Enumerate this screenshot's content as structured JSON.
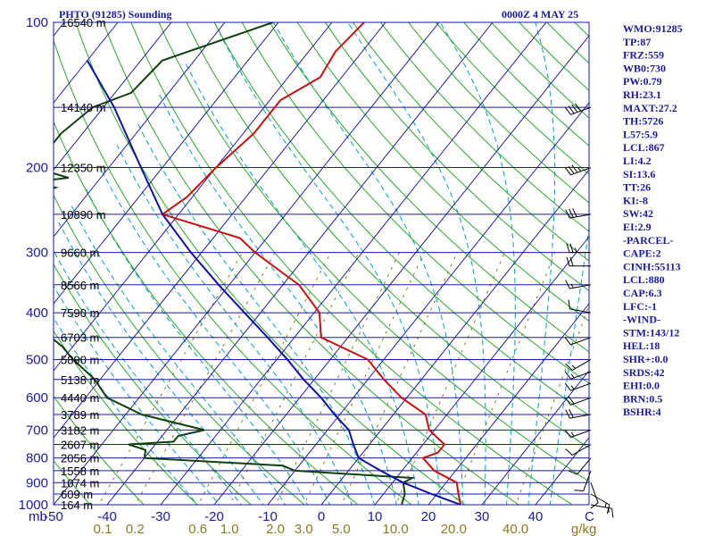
{
  "header": {
    "station": "PHTO (91285) Sounding",
    "time": "0000Z  4 MAY 25"
  },
  "chart_data": {
    "type": "skew-t",
    "pressure_axis": {
      "label": "mb",
      "levels": [
        100,
        200,
        300,
        400,
        500,
        600,
        700,
        800,
        900,
        1000
      ],
      "labels": [
        "100",
        "200",
        "300",
        "400",
        "500",
        "600",
        "700",
        "800",
        "900",
        "1000"
      ]
    },
    "temperature_axis": {
      "unit": "C",
      "ticks": [
        -50,
        -40,
        -30,
        -20,
        -10,
        0,
        10,
        20,
        30,
        40
      ],
      "labels": [
        "-50",
        "-40",
        "-30",
        "-20",
        "-10",
        "0",
        "10",
        "20",
        "30",
        "40"
      ]
    },
    "mixing_ratio_axis": {
      "unit": "g/kg",
      "values": [
        0.1,
        0.2,
        0.6,
        1.0,
        2.0,
        3.0,
        5.0,
        10.0,
        20.0,
        40.0
      ],
      "labels": [
        "0.1",
        "0.2",
        "0.6",
        "1.0",
        "2.0",
        "3.0",
        "5.0",
        "10.0",
        "20.0",
        "40.0"
      ]
    },
    "height_labels": [
      {
        "p": 100,
        "text": "16540 m"
      },
      {
        "p": 150,
        "text": "14140 m"
      },
      {
        "p": 200,
        "text": "12350 m"
      },
      {
        "p": 250,
        "text": "10890 m"
      },
      {
        "p": 300,
        "text": "9660 m"
      },
      {
        "p": 350,
        "text": "8566 m"
      },
      {
        "p": 400,
        "text": "7590 m"
      },
      {
        "p": 450,
        "text": "6703 m"
      },
      {
        "p": 500,
        "text": "5890 m"
      },
      {
        "p": 550,
        "text": "5138 m"
      },
      {
        "p": 600,
        "text": "4440 m"
      },
      {
        "p": 650,
        "text": "3789 m"
      },
      {
        "p": 700,
        "text": "3182 m"
      },
      {
        "p": 750,
        "text": "2607 m"
      },
      {
        "p": 800,
        "text": "2056 m"
      },
      {
        "p": 850,
        "text": "1558 m"
      },
      {
        "p": 900,
        "text": "1074 m"
      },
      {
        "p": 950,
        "text": "609 m"
      },
      {
        "p": 1000,
        "text": "164 m"
      }
    ],
    "series": [
      {
        "name": "Temperature",
        "color": "#c81010",
        "points": [
          [
            100,
            -64
          ],
          [
            115,
            -65
          ],
          [
            130,
            -64
          ],
          [
            145,
            -68
          ],
          [
            170,
            -68
          ],
          [
            200,
            -70
          ],
          [
            230,
            -71
          ],
          [
            250,
            -73
          ],
          [
            280,
            -55
          ],
          [
            300,
            -50
          ],
          [
            330,
            -42
          ],
          [
            350,
            -37
          ],
          [
            400,
            -29
          ],
          [
            450,
            -25
          ],
          [
            500,
            -13
          ],
          [
            550,
            -7
          ],
          [
            600,
            -1
          ],
          [
            650,
            6
          ],
          [
            700,
            9
          ],
          [
            750,
            14
          ],
          [
            780,
            14
          ],
          [
            800,
            12
          ],
          [
            850,
            16
          ],
          [
            900,
            22
          ],
          [
            950,
            24
          ],
          [
            1000,
            26
          ]
        ]
      },
      {
        "name": "Dewpoint",
        "color": "#104010",
        "points": [
          [
            100,
            -81
          ],
          [
            120,
            -96
          ],
          [
            140,
            -97
          ],
          [
            150,
            -102
          ],
          [
            170,
            -104
          ],
          [
            200,
            -104
          ],
          [
            210,
            -96
          ],
          [
            215,
            -103
          ],
          [
            220,
            -97
          ],
          [
            250,
            -107
          ],
          [
            290,
            -98
          ],
          [
            330,
            -92
          ],
          [
            350,
            -92
          ],
          [
            380,
            -90
          ],
          [
            400,
            -84
          ],
          [
            430,
            -79
          ],
          [
            470,
            -72
          ],
          [
            500,
            -68
          ],
          [
            550,
            -61
          ],
          [
            600,
            -56
          ],
          [
            650,
            -47
          ],
          [
            700,
            -33
          ],
          [
            720,
            -37
          ],
          [
            740,
            -37
          ],
          [
            750,
            -45
          ],
          [
            770,
            -41
          ],
          [
            800,
            -40
          ],
          [
            830,
            -13
          ],
          [
            850,
            -10
          ],
          [
            880,
            13
          ],
          [
            900,
            12
          ],
          [
            950,
            14
          ],
          [
            1000,
            15
          ]
        ]
      },
      {
        "name": "Parcel",
        "color": "#1010a0",
        "points": [
          [
            120,
            -110
          ],
          [
            150,
            -98
          ],
          [
            200,
            -84
          ],
          [
            250,
            -73
          ],
          [
            300,
            -62
          ],
          [
            350,
            -52
          ],
          [
            400,
            -43
          ],
          [
            450,
            -35
          ],
          [
            500,
            -28
          ],
          [
            550,
            -22
          ],
          [
            600,
            -16
          ],
          [
            650,
            -11
          ],
          [
            700,
            -6
          ],
          [
            750,
            -3
          ],
          [
            800,
            0
          ],
          [
            850,
            6
          ],
          [
            900,
            12
          ],
          [
            950,
            19
          ],
          [
            1000,
            26
          ]
        ]
      }
    ],
    "wind_barbs": [
      {
        "p": 150,
        "dir": 250,
        "spd": 40
      },
      {
        "p": 200,
        "dir": 250,
        "spd": 35
      },
      {
        "p": 250,
        "dir": 260,
        "spd": 30
      },
      {
        "p": 300,
        "dir": 270,
        "spd": 25
      },
      {
        "p": 320,
        "dir": 270,
        "spd": 20
      },
      {
        "p": 350,
        "dir": 260,
        "spd": 15
      },
      {
        "p": 400,
        "dir": 280,
        "spd": 10
      },
      {
        "p": 450,
        "dir": 250,
        "spd": 10
      },
      {
        "p": 500,
        "dir": 240,
        "spd": 15
      },
      {
        "p": 530,
        "dir": 250,
        "spd": 15
      },
      {
        "p": 560,
        "dir": 250,
        "spd": 15
      },
      {
        "p": 600,
        "dir": 250,
        "spd": 20
      },
      {
        "p": 650,
        "dir": 260,
        "spd": 20
      },
      {
        "p": 700,
        "dir": 250,
        "spd": 15
      },
      {
        "p": 750,
        "dir": 240,
        "spd": 10
      },
      {
        "p": 800,
        "dir": 220,
        "spd": 10
      },
      {
        "p": 850,
        "dir": 200,
        "spd": 10
      },
      {
        "p": 900,
        "dir": 160,
        "spd": 10
      },
      {
        "p": 950,
        "dir": 120,
        "spd": 15
      },
      {
        "p": 1000,
        "dir": 100,
        "spd": 15
      }
    ],
    "grid": {
      "isobars": [
        100,
        150,
        200,
        250,
        300,
        350,
        400,
        450,
        500,
        550,
        600,
        650,
        700,
        750,
        800,
        850,
        900,
        950,
        1000
      ]
    }
  },
  "indices": {
    "station_lines": [
      "WMO:91285",
      "TP:87",
      "FRZ:559",
      "WB0:730",
      "PW:0.79",
      "RH:23.1",
      "MAXT:27.2",
      "TH:5726",
      "L57:5.9",
      "LCL:867",
      "LI:4.2",
      "SI:13.6",
      "TT:26",
      "KI:-8",
      "SW:42",
      "EI:2.9"
    ],
    "parcel_header": "-PARCEL-",
    "parcel_lines": [
      "CAPE:2",
      "CINH:55113",
      "LCL:880",
      "CAP:6.3",
      "LFC:-1"
    ],
    "wind_header": "-WIND-",
    "wind_lines": [
      "STM:143/12",
      "HEL:18",
      "SHR+:0.0",
      "SRDS:42",
      "EHI:0.0",
      "BRN:0.5",
      "BSHR:4"
    ]
  },
  "colors": {
    "isobar": "#1a1aa0",
    "isotherm": "#1a1aa0",
    "dry_adiabat": "#2aa82a",
    "moist_adiabat": "#00a0c8",
    "mixing_ratio": "#8a7a20",
    "temperature": "#c81010",
    "dewpoint": "#104010",
    "parcel": "#1010a0"
  }
}
